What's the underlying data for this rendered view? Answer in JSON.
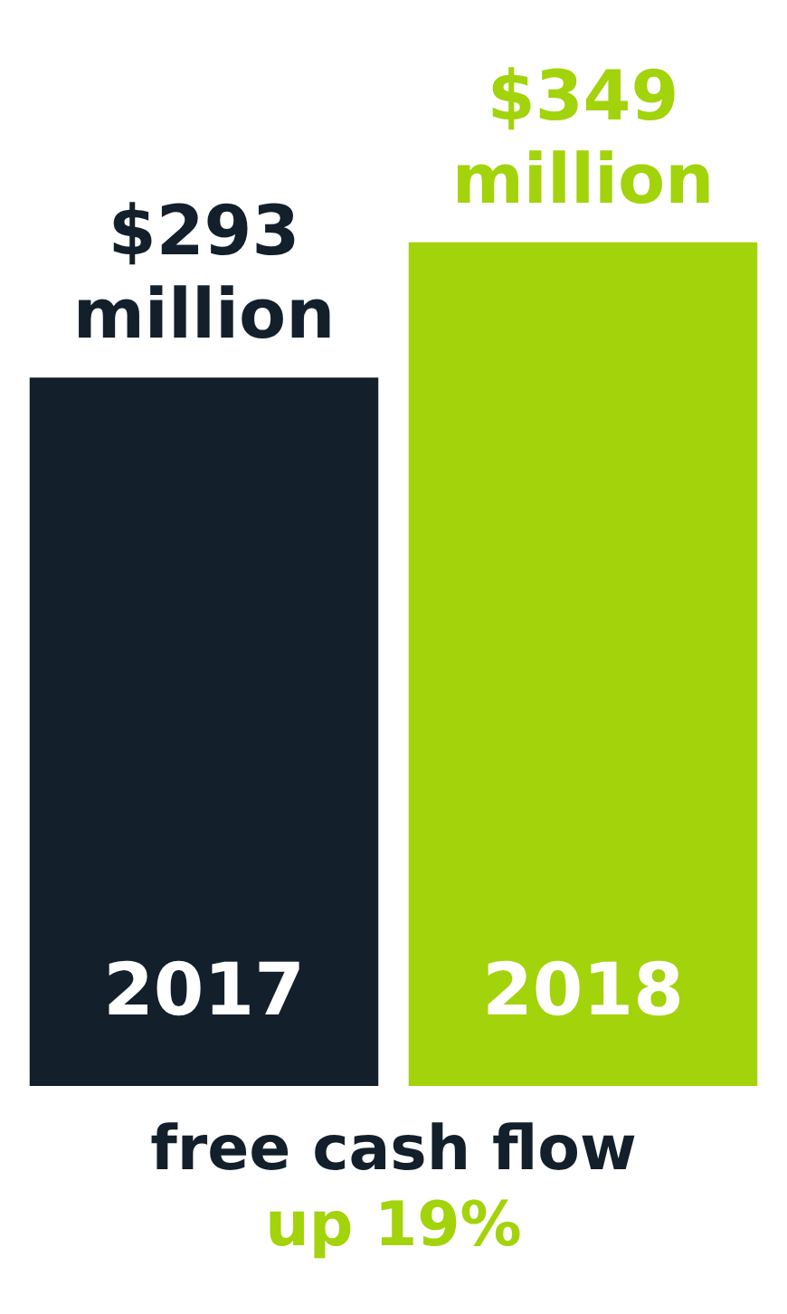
{
  "chart_data": {
    "type": "bar",
    "title": "free cash flow",
    "subtitle": "up 19%",
    "categories": [
      "2017",
      "2018"
    ],
    "values": [
      293,
      349
    ],
    "colors": [
      "#131f2b",
      "#a3d30a"
    ],
    "value_labels": [
      "$293 million",
      "$349 million"
    ]
  }
}
